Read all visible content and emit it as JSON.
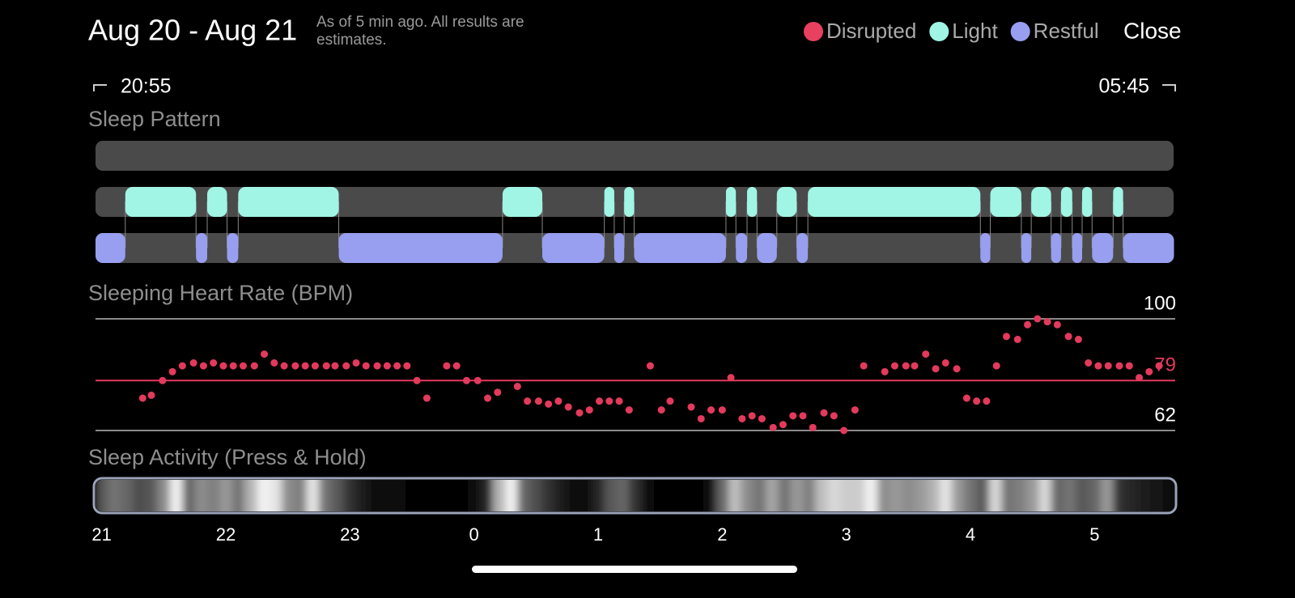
{
  "header": {
    "title": "Aug 20 - Aug 21",
    "subtitle": "As of 5 min ago. All results are estimates.",
    "close": "Close"
  },
  "time_range": {
    "start": "20:55",
    "end": "05:45"
  },
  "chart_data": [
    {
      "type": "timeline",
      "title": "Sleep Pattern",
      "xlim": [
        20.95,
        29.65
      ],
      "track_color": "#4a4a4a",
      "series": [
        {
          "name": "Disrupted",
          "color": "#e8405f",
          "segments": []
        },
        {
          "name": "Light",
          "color": "#a0f5e4",
          "segments": [
            [
              21.19,
              21.76
            ],
            [
              21.85,
              22.01
            ],
            [
              22.1,
              22.91
            ],
            [
              24.23,
              24.55
            ],
            [
              25.05,
              25.13
            ],
            [
              25.21,
              25.29
            ],
            [
              26.03,
              26.11
            ],
            [
              26.2,
              26.28
            ],
            [
              26.44,
              26.6
            ],
            [
              26.69,
              28.08
            ],
            [
              28.16,
              28.41
            ],
            [
              28.49,
              28.65
            ],
            [
              28.73,
              28.82
            ],
            [
              28.9,
              28.98
            ],
            [
              29.15,
              29.23
            ]
          ]
        },
        {
          "name": "Restful",
          "color": "#989ff0",
          "segments": [
            [
              20.95,
              21.19
            ],
            [
              21.76,
              21.85
            ],
            [
              22.01,
              22.1
            ],
            [
              22.91,
              24.23
            ],
            [
              24.55,
              25.05
            ],
            [
              25.13,
              25.21
            ],
            [
              25.29,
              26.03
            ],
            [
              26.11,
              26.2
            ],
            [
              26.28,
              26.44
            ],
            [
              26.6,
              26.69
            ],
            [
              28.08,
              28.16
            ],
            [
              28.41,
              28.49
            ],
            [
              28.65,
              28.73
            ],
            [
              28.82,
              28.9
            ],
            [
              28.98,
              29.15
            ],
            [
              29.23,
              29.64
            ]
          ]
        }
      ]
    },
    {
      "type": "scatter",
      "title": "Sleeping Heart Rate (BPM)",
      "color": "#e33a5c",
      "xlim": [
        20.95,
        29.65
      ],
      "ylim": [
        62,
        100
      ],
      "yticks": [
        62,
        100
      ],
      "grid": true,
      "reference_line": {
        "value": 79,
        "color": "#e33a5c"
      },
      "x": [
        21.33,
        21.4,
        21.49,
        21.57,
        21.65,
        21.74,
        21.82,
        21.9,
        21.98,
        22.06,
        22.14,
        22.23,
        22.31,
        22.39,
        22.47,
        22.56,
        22.64,
        22.72,
        22.81,
        22.88,
        22.97,
        23.05,
        23.13,
        23.22,
        23.3,
        23.38,
        23.46,
        23.54,
        23.62,
        23.78,
        23.86,
        23.94,
        24.03,
        24.11,
        24.19,
        24.35,
        24.43,
        24.52,
        24.6,
        24.68,
        24.76,
        24.85,
        24.93,
        25.01,
        25.09,
        25.17,
        25.25,
        25.42,
        25.51,
        25.58,
        25.75,
        25.83,
        25.91,
        26.0,
        26.07,
        26.16,
        26.24,
        26.32,
        26.41,
        26.49,
        26.57,
        26.65,
        26.73,
        26.82,
        26.9,
        26.98,
        27.07,
        27.14,
        27.31,
        27.39,
        27.48,
        27.55,
        27.64,
        27.72,
        27.8,
        27.89,
        27.97,
        28.05,
        28.13,
        28.21,
        28.29,
        28.38,
        28.46,
        28.54,
        28.62,
        28.7,
        28.79,
        28.87,
        28.95,
        29.03,
        29.11,
        29.2,
        29.28,
        29.36,
        29.44,
        29.52
      ],
      "values": [
        73,
        74,
        79,
        82,
        84,
        85,
        84,
        85,
        84,
        84,
        84,
        84,
        88,
        85,
        84,
        84,
        84,
        84,
        84,
        84,
        84,
        85,
        84,
        84,
        84,
        84,
        84,
        79,
        73,
        84,
        84,
        79,
        79,
        73,
        75,
        77,
        72,
        72,
        71,
        72,
        70,
        68,
        69,
        72,
        72,
        72,
        69,
        84,
        69,
        72,
        70,
        66,
        69,
        69,
        80,
        66,
        67,
        66,
        63,
        64,
        67,
        67,
        63,
        68,
        67,
        62,
        69,
        84,
        82,
        84,
        84,
        84,
        88,
        83,
        85,
        83,
        73,
        72,
        72,
        84,
        94,
        93,
        98,
        100,
        99,
        98,
        94,
        93,
        85,
        84,
        84,
        84,
        84,
        80,
        82,
        84
      ]
    },
    {
      "type": "heatmap",
      "title": "Sleep Activity (Press & Hold)",
      "xlim": [
        20.95,
        29.65
      ],
      "xticks": [
        21,
        22,
        23,
        {
          "value": 24,
          "label": "0"
        },
        {
          "value": 25,
          "label": "1"
        },
        {
          "value": 26,
          "label": "2"
        },
        {
          "value": 27,
          "label": "3"
        },
        {
          "value": 28,
          "label": "4"
        },
        {
          "value": 29,
          "label": "5"
        }
      ],
      "x": [
        21,
        21.1,
        21.2,
        21.3,
        21.4,
        21.5,
        21.6,
        21.7,
        21.8,
        21.9,
        22,
        22.1,
        22.2,
        22.3,
        22.4,
        22.5,
        22.6,
        22.7,
        22.8,
        22.9,
        23,
        23.1,
        23.2,
        23.3,
        23.4,
        23.5,
        23.6,
        23.7,
        23.8,
        23.9,
        24,
        24.1,
        24.2,
        24.3,
        24.4,
        24.5,
        24.6,
        24.7,
        24.8,
        24.9,
        25,
        25.1,
        25.2,
        25.3,
        25.4,
        25.5,
        25.6,
        25.7,
        25.8,
        25.9,
        26,
        26.1,
        26.2,
        26.3,
        26.4,
        26.5,
        26.6,
        26.7,
        26.8,
        26.9,
        27,
        27.1,
        27.2,
        27.3,
        27.4,
        27.5,
        27.6,
        27.7,
        27.8,
        27.9,
        28,
        28.1,
        28.2,
        28.3,
        28.4,
        28.5,
        28.6,
        28.7,
        28.8,
        28.9,
        29,
        29.1,
        29.2,
        29.3,
        29.4,
        29.5,
        29.6
      ],
      "values": [
        35,
        45,
        40,
        30,
        35,
        55,
        95,
        40,
        55,
        50,
        60,
        45,
        70,
        95,
        90,
        55,
        50,
        90,
        45,
        35,
        20,
        10,
        5,
        3,
        3,
        2,
        2,
        2,
        2,
        2,
        3,
        15,
        70,
        95,
        40,
        30,
        20,
        10,
        5,
        5,
        15,
        35,
        40,
        20,
        3,
        2,
        2,
        2,
        2,
        5,
        40,
        75,
        55,
        45,
        65,
        45,
        60,
        50,
        75,
        85,
        80,
        80,
        95,
        55,
        60,
        55,
        60,
        70,
        90,
        60,
        45,
        35,
        85,
        45,
        50,
        60,
        85,
        40,
        45,
        35,
        40,
        60,
        20,
        15,
        10,
        8,
        5
      ]
    }
  ]
}
